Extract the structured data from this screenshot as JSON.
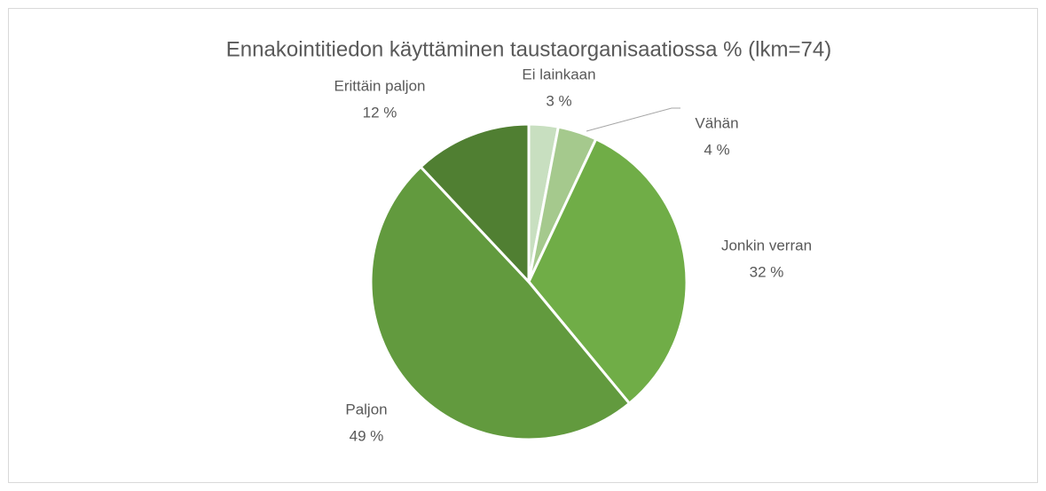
{
  "chart_data": {
    "type": "pie",
    "title": "Ennakointitiedon käyttäminen taustaorganisaatiossa % (lkm=74)",
    "categories": [
      "Ei lainkaan",
      "Vähän",
      "Jonkin verran",
      "Paljon",
      "Erittäin paljon"
    ],
    "values": [
      3,
      4,
      32,
      49,
      12
    ],
    "value_labels": [
      "3 %",
      "4 %",
      "32 %",
      "49 %",
      "12 %"
    ],
    "colors": [
      "#c8dfc0",
      "#a5c98d",
      "#70ad47",
      "#629a3e",
      "#507f32"
    ]
  }
}
